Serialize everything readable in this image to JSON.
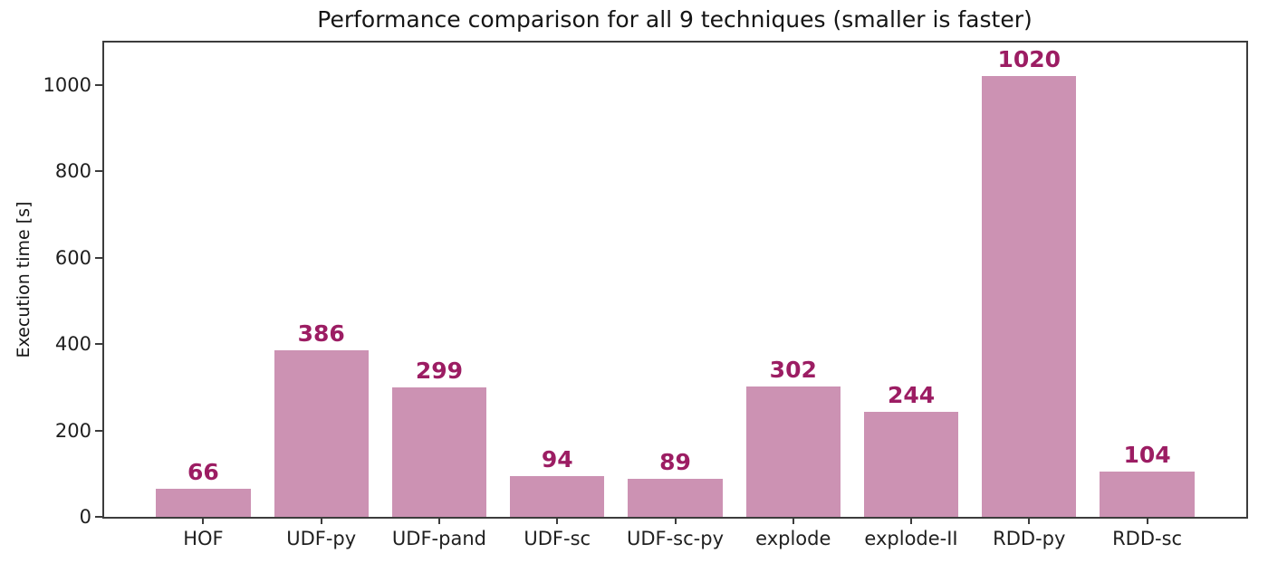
{
  "chart_data": {
    "type": "bar",
    "title": "Performance comparison for all 9 techniques (smaller is faster)",
    "xlabel": "",
    "ylabel": "Execution time [s]",
    "categories": [
      "HOF",
      "UDF-py",
      "UDF-pand",
      "UDF-sc",
      "UDF-sc-py",
      "explode",
      "explode-II",
      "RDD-py",
      "RDD-sc"
    ],
    "values": [
      66,
      386,
      299,
      94,
      89,
      302,
      244,
      1020,
      104
    ],
    "yticks": [
      0,
      200,
      400,
      600,
      800,
      1000
    ],
    "ylim": [
      0,
      1098
    ],
    "bar_color": "#cc92b3",
    "value_label_color": "#9c1d63",
    "axis_color": "#3c3c3c",
    "grid": false,
    "legend_position": "none"
  }
}
